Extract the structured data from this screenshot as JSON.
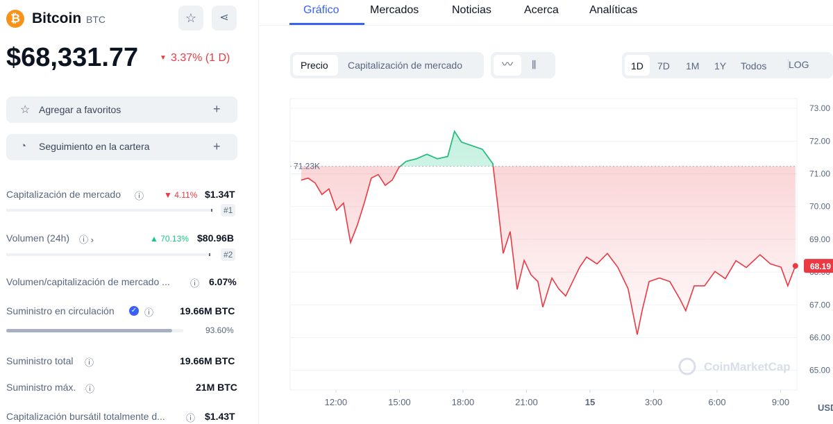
{
  "coin": {
    "name": "Bitcoin",
    "symbol": "BTC",
    "price": "$68,331.77",
    "change": "3.37% (1 D)"
  },
  "actions": [
    "Agregar a favoritos",
    "Seguimiento en la cartera"
  ],
  "stats": [
    {
      "label": "Capitalización de mercado",
      "change": "4.11%",
      "value": "$1.34T",
      "rank": "#1"
    },
    {
      "label": "Volumen (24h)",
      "change": "70.13%",
      "value": "$80.96B",
      "rank": "#2"
    },
    {
      "label": "Volumen/capitalización de mercado ...",
      "value": "6.07%"
    },
    {
      "label": "Suministro en circulación",
      "value": "19.66M BTC",
      "percent": {
        "value": 93.6,
        "label": "93.60%"
      }
    },
    {
      "label": "Suministro total",
      "value": "19.66M BTC"
    },
    {
      "label": "Suministro máx.",
      "value": "21M BTC"
    },
    {
      "label": "Capitalización bursátil totalmente d...",
      "value": "$1.43T"
    }
  ],
  "tabs": [
    "Gráfico",
    "Mercados",
    "Noticias",
    "Acerca",
    "Analíticas"
  ],
  "chart_toggles": [
    "Precio",
    "Capitalización de mercado"
  ],
  "ranges": [
    "1D",
    "7D",
    "1M",
    "1Y",
    "Todos",
    "LOG"
  ],
  "chart_data": {
    "type": "line",
    "x": [
      10.36,
      10.69,
      11.02,
      11.34,
      11.67,
      12.03,
      12.36,
      12.69,
      13.02,
      13.34,
      13.67,
      14.0,
      14.33,
      14.66,
      14.98,
      15.31,
      15.8,
      16.3,
      16.79,
      17.28,
      17.6,
      17.93,
      18.43,
      18.92,
      19.41,
      19.67,
      19.9,
      20.23,
      20.56,
      20.89,
      21.21,
      21.54,
      21.77,
      22.2,
      22.52,
      22.85,
      23.18,
      23.51,
      23.84,
      24.33,
      24.82,
      25.31,
      25.8,
      26.23,
      26.46,
      26.79,
      27.28,
      27.77,
      28.26,
      28.52,
      28.92,
      29.41,
      29.9,
      30.39,
      30.89,
      31.38,
      32.03,
      32.52,
      33.02,
      33.34,
      33.7
    ],
    "values": [
      70.81,
      70.87,
      70.72,
      70.37,
      70.54,
      69.89,
      70.11,
      68.9,
      69.45,
      70.11,
      70.87,
      70.98,
      70.65,
      70.81,
      71.2,
      71.38,
      71.46,
      71.6,
      71.46,
      71.53,
      72.3,
      71.97,
      71.86,
      71.75,
      71.31,
      69.89,
      68.57,
      69.24,
      67.47,
      68.36,
      67.92,
      67.71,
      66.93,
      67.82,
      67.49,
      67.27,
      67.71,
      68.15,
      68.46,
      68.25,
      68.57,
      68.15,
      67.49,
      66.09,
      66.82,
      67.71,
      67.82,
      67.71,
      67.16,
      66.82,
      67.58,
      67.58,
      68.02,
      67.8,
      68.35,
      68.14,
      68.53,
      68.25,
      68.15,
      67.58,
      68.19
    ],
    "xlim": [
      9.84,
      33.77
    ],
    "xticks": [
      {
        "value": 12,
        "label": "12:00"
      },
      {
        "value": 15,
        "label": "15:00"
      },
      {
        "value": 18,
        "label": "18:00"
      },
      {
        "value": 21,
        "label": "21:00"
      },
      {
        "value": 24,
        "label": "15"
      },
      {
        "value": 27,
        "label": "3:00"
      },
      {
        "value": 30,
        "label": "6:00"
      },
      {
        "value": 33,
        "label": "9:00"
      }
    ],
    "ylim": [
      64.4,
      73.3
    ],
    "yticks": [
      {
        "value": 73,
        "label": "73.00"
      },
      {
        "value": 72,
        "label": "72.00"
      },
      {
        "value": 71,
        "label": "71.00"
      },
      {
        "value": 70,
        "label": "70.00"
      },
      {
        "value": 69,
        "label": "69.00"
      },
      {
        "value": 68,
        "label": "68.00"
      },
      {
        "value": 67,
        "label": "67.00"
      },
      {
        "value": 66,
        "label": "66.00"
      },
      {
        "value": 65,
        "label": "65.00"
      }
    ],
    "baseline": {
      "value": 71.23,
      "label": "71.23K"
    },
    "current": 68.19,
    "unit": "USD",
    "watermark": "CoinMarketCap",
    "grid": true,
    "color_up": "#16c784",
    "color_down": "#ea3943"
  }
}
